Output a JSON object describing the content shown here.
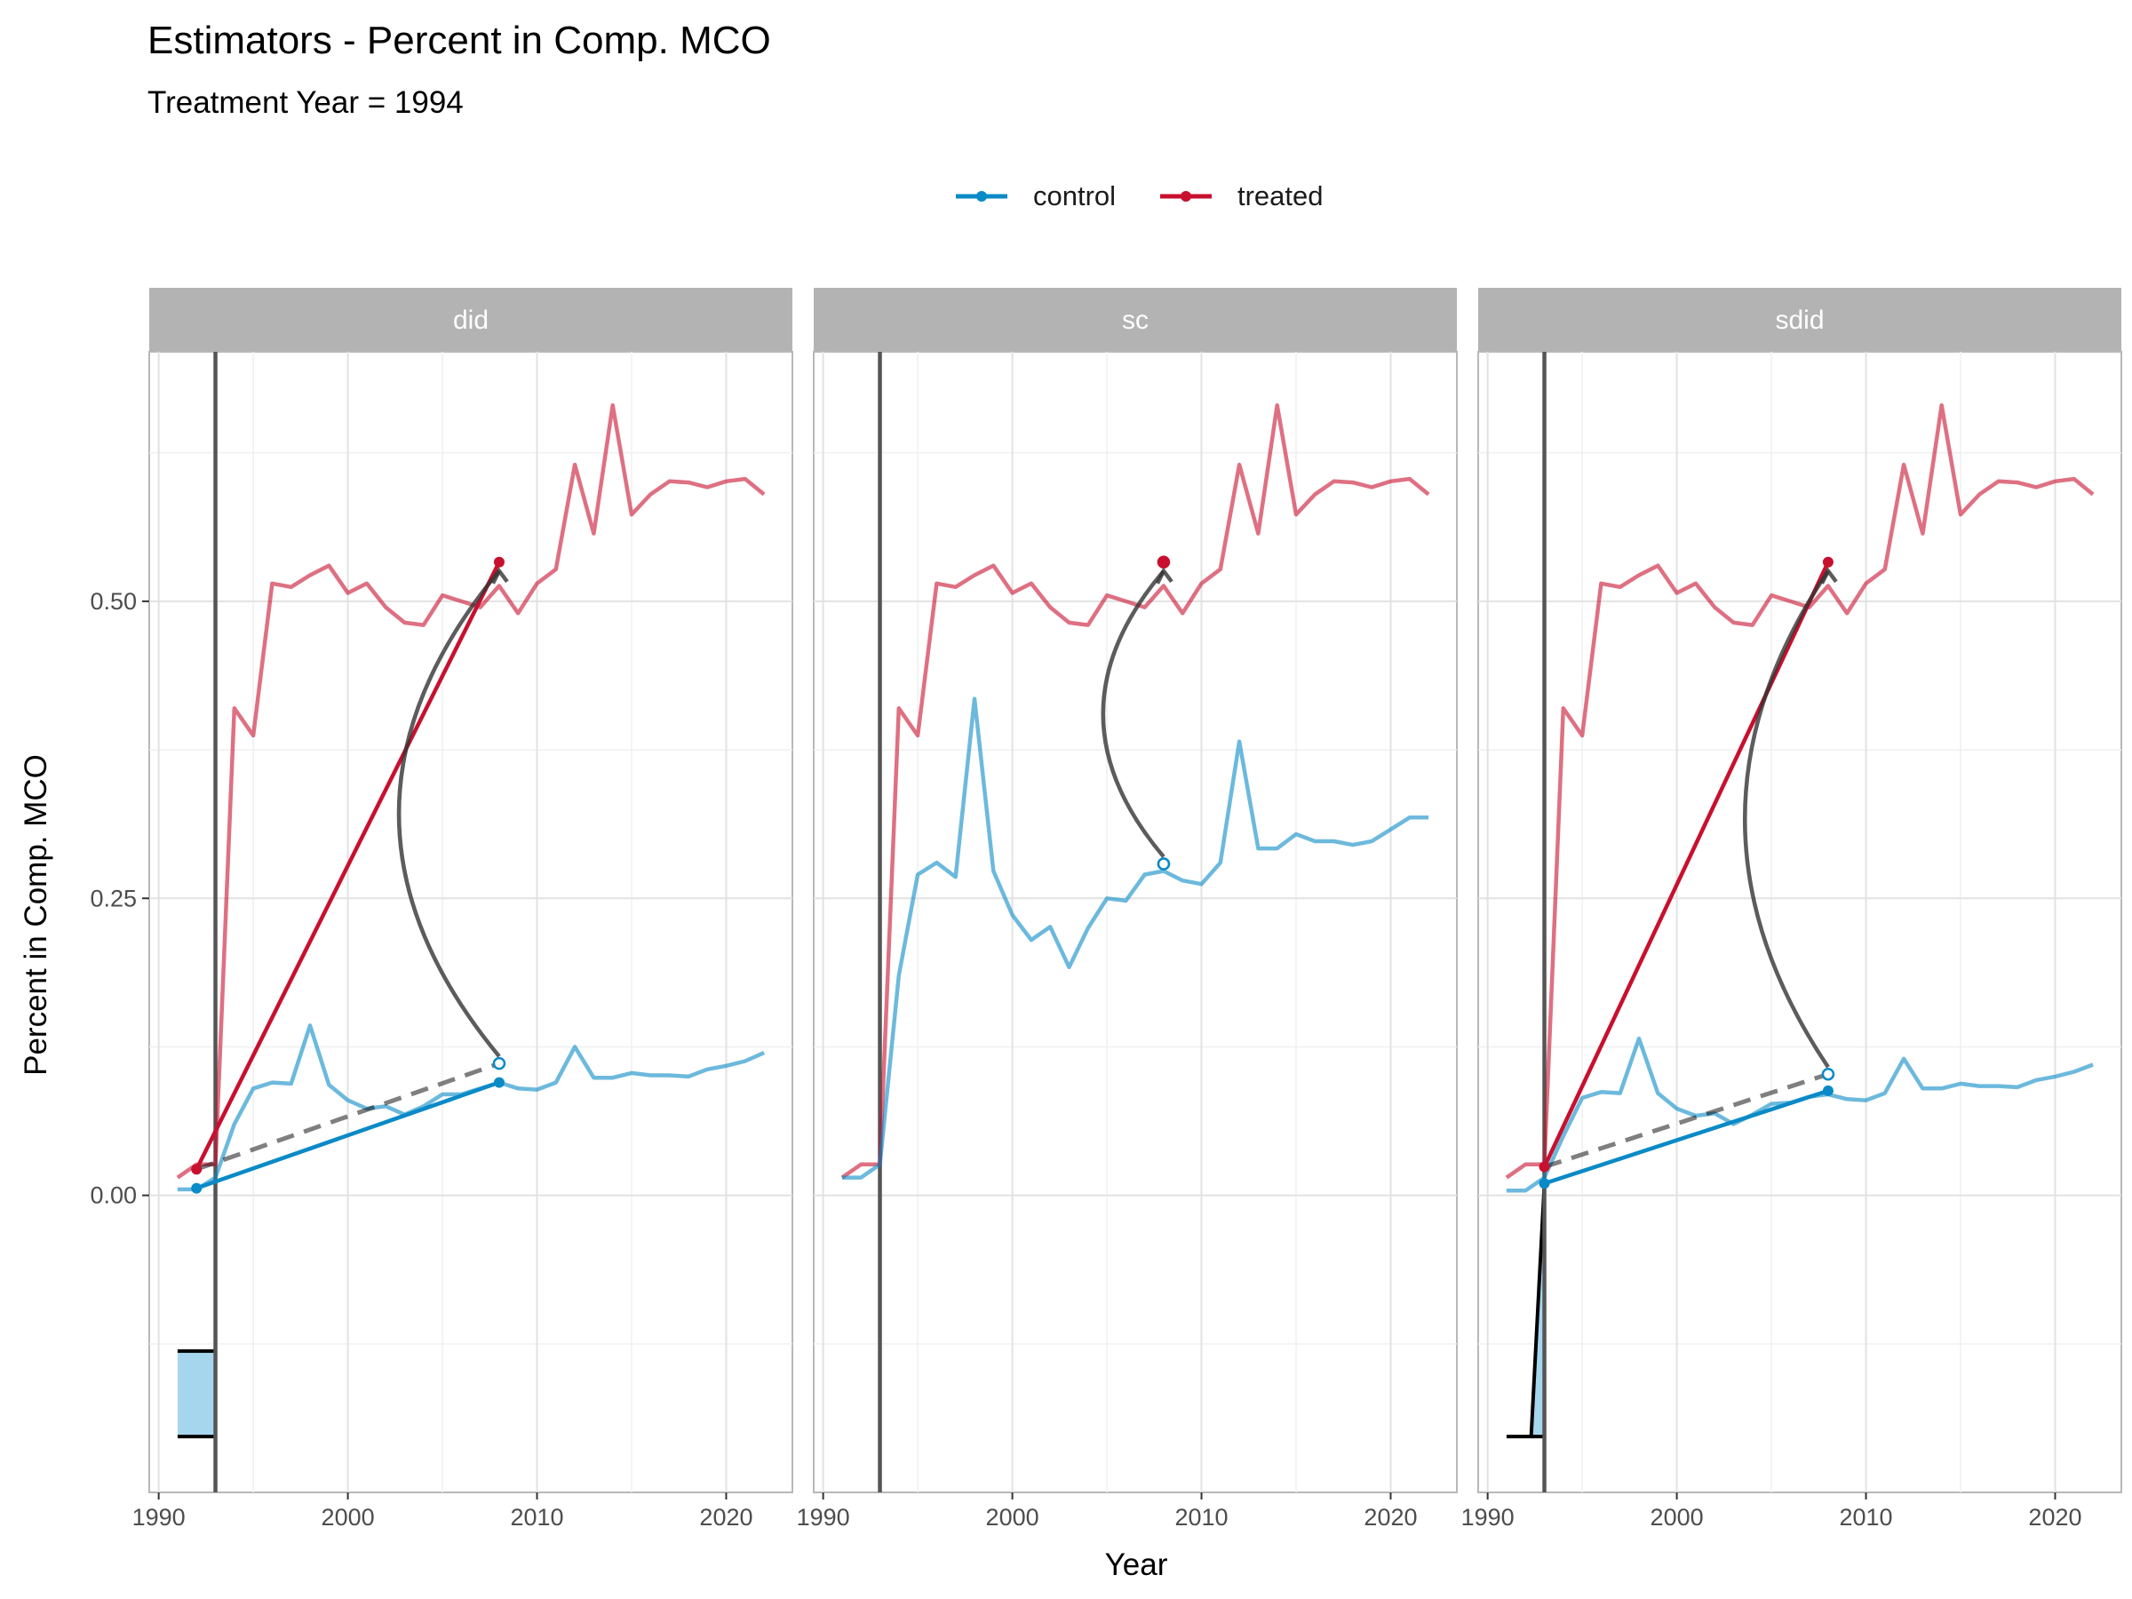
{
  "title": "Estimators - Percent in Comp. MCO",
  "subtitle": "Treatment Year = 1994",
  "colors": {
    "control": "#0a8ac6",
    "treated": "#c8102e",
    "arrow": "#333333",
    "strip": "#b3b3b3",
    "weight_fill": "#a6d6ee"
  },
  "legend": [
    {
      "key": "control",
      "label": "control"
    },
    {
      "key": "treated",
      "label": "treated"
    }
  ],
  "chart_data": {
    "type": "line",
    "xlabel": "Year",
    "ylabel": "Percent in Comp. MCO",
    "xlim": [
      1989.5,
      2023.5
    ],
    "ylim": [
      -0.25,
      0.71
    ],
    "x_ticks": [
      1990,
      2000,
      2010,
      2020
    ],
    "x_tick_labels": [
      "1990",
      "2000",
      "2010",
      "2020"
    ],
    "y_ticks": [
      0.0,
      0.25,
      0.5
    ],
    "y_tick_labels": [
      "0.00",
      "0.25",
      "0.50"
    ],
    "grid": true,
    "legend_position": "top",
    "years": [
      1991,
      1992,
      1993,
      1994,
      1995,
      1996,
      1997,
      1998,
      1999,
      2000,
      2001,
      2002,
      2003,
      2004,
      2005,
      2006,
      2007,
      2008,
      2009,
      2010,
      2011,
      2012,
      2013,
      2014,
      2015,
      2016,
      2017,
      2018,
      2019,
      2020,
      2021,
      2022
    ],
    "treated": [
      0.015,
      0.026,
      0.026,
      0.41,
      0.387,
      0.515,
      0.512,
      0.522,
      0.53,
      0.507,
      0.515,
      0.495,
      0.482,
      0.48,
      0.505,
      0.5,
      0.495,
      0.513,
      0.49,
      0.515,
      0.527,
      0.615,
      0.557,
      0.665,
      0.573,
      0.59,
      0.601,
      0.6,
      0.596,
      0.601,
      0.603,
      0.59
    ],
    "panels": [
      {
        "label": "did",
        "treatment_line_x": 1993,
        "control": [
          0.005,
          0.005,
          0.015,
          0.06,
          0.09,
          0.095,
          0.094,
          0.143,
          0.093,
          0.08,
          0.073,
          0.075,
          0.068,
          0.075,
          0.085,
          0.085,
          0.09,
          0.095,
          0.09,
          0.089,
          0.095,
          0.125,
          0.099,
          0.099,
          0.103,
          0.101,
          0.101,
          0.1,
          0.106,
          0.109,
          0.113,
          0.12
        ],
        "control_segment": {
          "x": [
            1992,
            2008
          ],
          "y": [
            0.006,
            0.095
          ]
        },
        "treated_segment": {
          "x": [
            1992,
            2008
          ],
          "y": [
            0.022,
            0.533
          ]
        },
        "counterfactual": {
          "x": [
            1992,
            2008
          ],
          "y": [
            0.022,
            0.111
          ]
        },
        "effect_arrow": {
          "from": [
            2008,
            0.111
          ],
          "to": [
            2008,
            0.533
          ],
          "bend_to_year": 2002.7
        },
        "weights": {
          "x0": 1991,
          "x1": 1993,
          "y_top": -0.131,
          "y_bottom": -0.203,
          "style": "bar"
        }
      },
      {
        "label": "sc",
        "treatment_line_x": 1993,
        "control": [
          0.015,
          0.015,
          0.026,
          0.185,
          0.27,
          0.28,
          0.268,
          0.418,
          0.273,
          0.236,
          0.215,
          0.226,
          0.192,
          0.225,
          0.25,
          0.248,
          0.27,
          0.273,
          0.265,
          0.262,
          0.28,
          0.382,
          0.292,
          0.292,
          0.304,
          0.298,
          0.298,
          0.295,
          0.298,
          0.308,
          0.318,
          0.318
        ],
        "control_segment": null,
        "treated_segment": null,
        "counterfactual": null,
        "effect_arrow": {
          "from": [
            2008,
            0.279
          ],
          "to": [
            2008,
            0.533
          ],
          "bend_to_year": 2004.8
        },
        "endpoints": [
          {
            "series": "control",
            "x": 2008,
            "y": 0.279
          },
          {
            "series": "treated",
            "x": 2008,
            "y": 0.533
          }
        ],
        "weights": null
      },
      {
        "label": "sdid",
        "treatment_line_x": 1993,
        "control": [
          0.004,
          0.004,
          0.015,
          0.05,
          0.082,
          0.087,
          0.086,
          0.132,
          0.086,
          0.073,
          0.067,
          0.069,
          0.06,
          0.068,
          0.077,
          0.078,
          0.083,
          0.085,
          0.081,
          0.08,
          0.086,
          0.115,
          0.09,
          0.09,
          0.094,
          0.092,
          0.092,
          0.091,
          0.097,
          0.1,
          0.104,
          0.11
        ],
        "control_segment": {
          "x": [
            1993,
            2008
          ],
          "y": [
            0.01,
            0.088
          ]
        },
        "treated_segment": {
          "x": [
            1993,
            2008
          ],
          "y": [
            0.024,
            0.533
          ]
        },
        "counterfactual": {
          "x": [
            1993,
            2008
          ],
          "y": [
            0.024,
            0.102
          ]
        },
        "effect_arrow": {
          "from": [
            2008,
            0.102
          ],
          "to": [
            2008,
            0.533
          ],
          "bend_to_year": 2003.6
        },
        "weights": {
          "x0": 1991,
          "x1": 1993,
          "y_top": -0.203,
          "y_bottom": -0.203,
          "style": "spike",
          "spike_top": [
            1993,
            0.01
          ]
        }
      }
    ]
  }
}
